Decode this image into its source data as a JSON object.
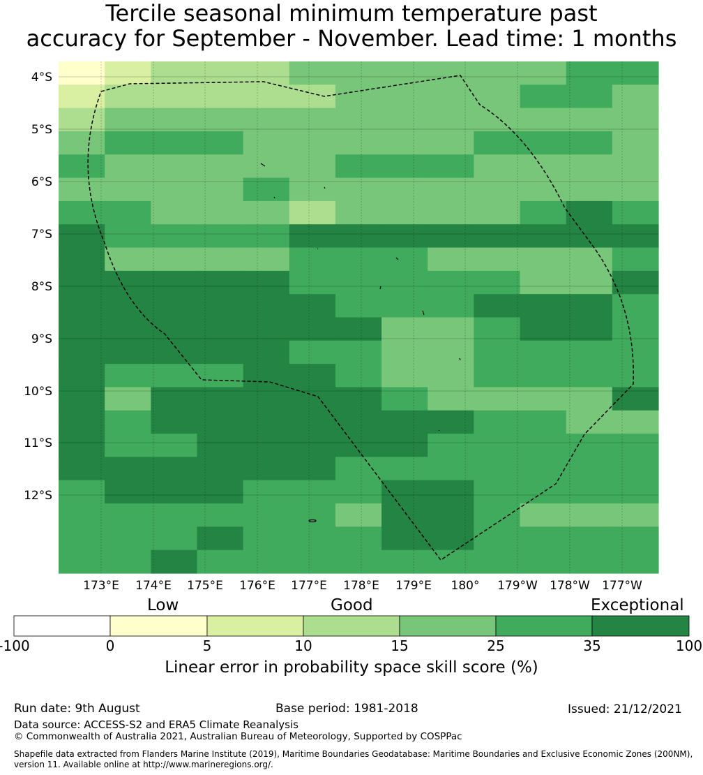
{
  "title_line1": "Tercile seasonal minimum temperature past",
  "title_line2": "accuracy for September - November. Lead time: 1 months",
  "map": {
    "lat_labels": [
      "4°S",
      "5°S",
      "6°S",
      "7°S",
      "8°S",
      "9°S",
      "10°S",
      "11°S",
      "12°S"
    ],
    "lon_labels": [
      "173°E",
      "174°E",
      "175°E",
      "176°E",
      "177°E",
      "178°E",
      "179°E",
      "180°",
      "179°W",
      "178°W",
      "177°W"
    ],
    "grid_levels": [
      "1233344444455",
      "2333334444554",
      "3444444444444",
      "4555444445554",
      "5444445554444",
      "4444544444444",
      "5544434444565",
      "6555566666666",
      "6444455544445",
      "6666655555446",
      "6666665556665",
      "6666666445665",
      "6666655445555",
      "6555665445555",
      "6466666544446",
      "6566666665544",
      "6556666655555",
      "6666665555555",
      "5666555665555",
      "5555554665444",
      "5556555665555",
      "5565555555555"
    ],
    "colors": [
      "#ffffff",
      "#ffffcc",
      "#d9f0a3",
      "#addd8e",
      "#78c679",
      "#41ab5d",
      "#238443"
    ]
  },
  "colorbar": {
    "category_low": "Low",
    "category_good": "Good",
    "category_exceptional": "Exceptional",
    "ticks": [
      "-100",
      "0",
      "5",
      "10",
      "15",
      "25",
      "35",
      "100"
    ],
    "title": "Linear error in probability space skill score (%)"
  },
  "footer": {
    "run_date": "Run date: 9th August",
    "base_period": "Base period: 1981-2018",
    "issued": "Issued: 21/12/2021",
    "data_source": "Data source: ACCESS-S2 and ERA5 Climate Reanalysis",
    "copyright": "© Commonwealth of Australia 2021, Australian Bureau of Meteorology, Supported by COSPPac",
    "shapefile_line1": "Shapefile data extracted from Flanders Marine Institute (2019), Maritime Boundaries Geodatabase: Maritime Boundaries and Exclusive Economic Zones (200NM),",
    "shapefile_line2": "version 11. Available online at http://www.marineregions.org/."
  }
}
